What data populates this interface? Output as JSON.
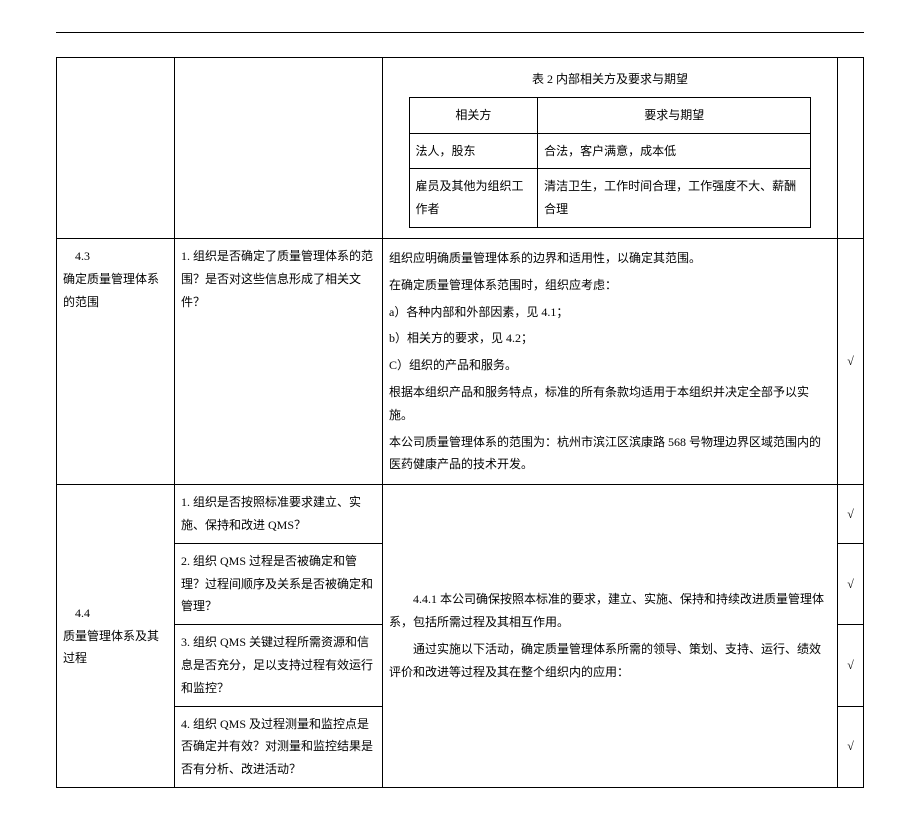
{
  "inner_table": {
    "title": "表 2 内部相关方及要求与期望",
    "headers": [
      "相关方",
      "要求与期望"
    ],
    "rows": [
      [
        "法人，股东",
        "合法，客户满意，成本低"
      ],
      [
        "雇员及其他为组织工作者",
        "清洁卫生，工作时间合理，工作强度不大、薪酬合理"
      ]
    ]
  },
  "r43": {
    "num": "4.3",
    "title": "确定质量管理体系的范围",
    "q1": "1. 组织是否确定了质量管理体系的范围？是否对这些信息形成了相关文件？",
    "body": {
      "p1": "组织应明确质量管理体系的边界和适用性，以确定其范围。",
      "p2": "在确定质量管理体系范围时，组织应考虑：",
      "p3": "a）各种内部和外部因素，见 4.1；",
      "p4": "b）相关方的要求，见 4.2；",
      "p5": "C）组织的产品和服务。",
      "p6": "根据本组织产品和服务特点，标准的所有条款均适用于本组织并决定全部予以实施。",
      "p7": "本公司质量管理体系的范围为：杭州市滨江区滨康路 568 号物理边界区域范围内的医药健康产品的技术开发。"
    },
    "check": "√"
  },
  "r44": {
    "num": "4.4",
    "title": "质量管理体系及其过程",
    "q1": "1. 组织是否按照标准要求建立、实施、保持和改进 QMS？",
    "q2": "2. 组织 QMS 过程是否被确定和管理？过程间顺序及关系是否被确定和管理？",
    "q3": "3. 组织 QMS 关键过程所需资源和信息是否充分，足以支持过程有效运行和监控？",
    "q4": "4. 组织 QMS 及过程测量和监控点是否确定并有效？对测量和监控结果是否有分析、改进活动？",
    "body": {
      "p1": "4.4.1 本公司确保按照本标准的要求，建立、实施、保持和持续改进质量管理体系，包括所需过程及其相互作用。",
      "p2": "通过实施以下活动，确定质量管理体系所需的领导、策划、支持、运行、绩效评价和改进等过程及其在整个组织内的应用："
    },
    "c1": "√",
    "c2": "√",
    "c3": "√",
    "c4": "√"
  }
}
